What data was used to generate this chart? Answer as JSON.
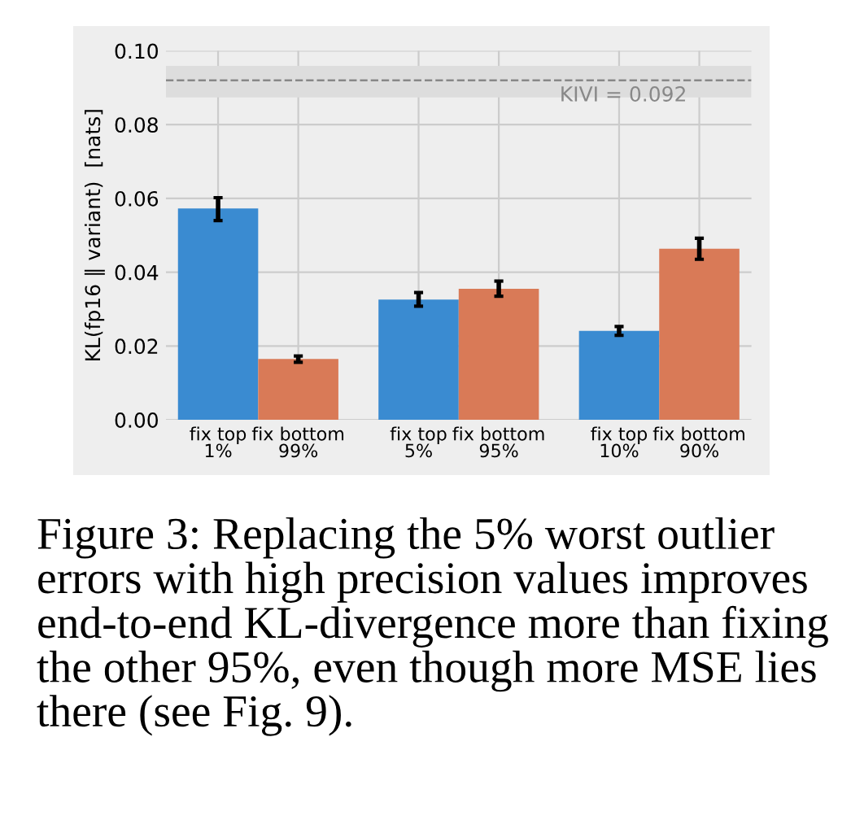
{
  "chart_data": {
    "type": "bar",
    "categories": [
      "fix top\n1%",
      "fix bottom\n99%",
      "fix top\n5%",
      "fix bottom\n95%",
      "fix top\n10%",
      "fix bottom\n90%"
    ],
    "values": [
      0.0573,
      0.0165,
      0.0326,
      0.0355,
      0.0241,
      0.0464
    ],
    "colors": [
      "#3a8bd1",
      "#d97a57",
      "#3a8bd1",
      "#d97a57",
      "#3a8bd1",
      "#d97a57"
    ],
    "errors": [
      [
        0.054,
        0.0602
      ],
      [
        0.0156,
        0.0173
      ],
      [
        0.0308,
        0.0345
      ],
      [
        0.0335,
        0.0376
      ],
      [
        0.0229,
        0.0253
      ],
      [
        0.0435,
        0.0492
      ]
    ],
    "ylabel": "KL(fp16 ‖ variant)  [nats]",
    "ylim": [
      0,
      0.1
    ],
    "yticks": [
      {
        "value": 0,
        "label": "0.00"
      },
      {
        "value": 0.02,
        "label": "0.02"
      },
      {
        "value": 0.04,
        "label": "0.04"
      },
      {
        "value": 0.06,
        "label": "0.06"
      },
      {
        "value": 0.08,
        "label": "0.08"
      },
      {
        "value": 0.1,
        "label": "0.10"
      }
    ],
    "ref_lines": [
      {
        "axis": "y",
        "value": 0.092,
        "label": "KIVI = 0.092",
        "color": "#888888",
        "line_style": "dashed"
      }
    ],
    "bands": [
      {
        "axis": "y",
        "from": 0.0874,
        "to": 0.0959,
        "color": "#dddddd"
      }
    ],
    "grid": true,
    "annotations": [
      "Figure 3: Replacing the 5% worst outlier errors with high precision values improves end-to-end KL-divergence more than fixing the other 95%, even though more MSE lies there (see Fig. 9)."
    ]
  }
}
